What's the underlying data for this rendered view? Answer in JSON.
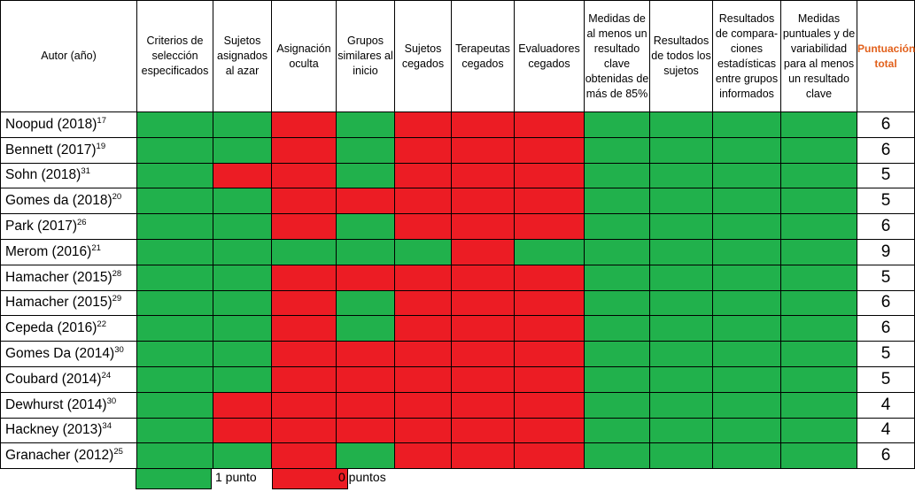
{
  "colors": {
    "green": "#21b14c",
    "red": "#ec1c24",
    "score_header": "#e2611c"
  },
  "headers": [
    "Autor (año)",
    "Criterios de selección especificados",
    "Sujetos asignados al azar",
    "Asignación oculta",
    "Grupos similares al inicio",
    "Sujetos cegados",
    "Terapeutas cegados",
    "Evaluadores cegados",
    "Medidas de al menos un resultado clave obtenidas de más de 85%",
    "Resultados de todos los sujetos",
    "Resultados de compara-ciones estadísticas entre grupos informados",
    "Medidas puntuales y de variabilidad para al menos un resultado clave",
    "Puntuación total"
  ],
  "rows": [
    {
      "author": "Noopud (2018)",
      "ref": "17",
      "cells": [
        "g",
        "g",
        "r",
        "g",
        "r",
        "r",
        "r",
        "g",
        "g",
        "g",
        "g"
      ],
      "score": "6"
    },
    {
      "author": "Bennett (2017)",
      "ref": "19",
      "cells": [
        "g",
        "g",
        "r",
        "g",
        "r",
        "r",
        "r",
        "g",
        "g",
        "g",
        "g"
      ],
      "score": "6"
    },
    {
      "author": "Sohn (2018)",
      "ref": "31",
      "cells": [
        "g",
        "r",
        "r",
        "g",
        "r",
        "r",
        "r",
        "g",
        "g",
        "g",
        "g"
      ],
      "score": "5"
    },
    {
      "author": "Gomes da (2018)",
      "ref": "20",
      "cells": [
        "g",
        "g",
        "r",
        "r",
        "r",
        "r",
        "r",
        "g",
        "g",
        "g",
        "g"
      ],
      "score": "5"
    },
    {
      "author": "Park (2017)",
      "ref": "26",
      "cells": [
        "g",
        "g",
        "r",
        "g",
        "r",
        "r",
        "r",
        "g",
        "g",
        "g",
        "g"
      ],
      "score": "6"
    },
    {
      "author": "Merom (2016)",
      "ref": "21",
      "cells": [
        "g",
        "g",
        "g",
        "g",
        "g",
        "r",
        "g",
        "g",
        "g",
        "g",
        "g"
      ],
      "score": "9"
    },
    {
      "author": "Hamacher (2015)",
      "ref": "28",
      "cells": [
        "g",
        "g",
        "r",
        "r",
        "r",
        "r",
        "r",
        "g",
        "g",
        "g",
        "g"
      ],
      "score": "5"
    },
    {
      "author": "Hamacher (2015)",
      "ref": "29",
      "cells": [
        "g",
        "g",
        "r",
        "g",
        "r",
        "r",
        "r",
        "g",
        "g",
        "g",
        "g"
      ],
      "score": "6"
    },
    {
      "author": "Cepeda (2016)",
      "ref": "22",
      "cells": [
        "g",
        "g",
        "r",
        "g",
        "r",
        "r",
        "r",
        "g",
        "g",
        "g",
        "g"
      ],
      "score": "6"
    },
    {
      "author": "Gomes Da (2014)",
      "ref": "30",
      "cells": [
        "g",
        "g",
        "r",
        "r",
        "r",
        "r",
        "r",
        "g",
        "g",
        "g",
        "g"
      ],
      "score": "5"
    },
    {
      "author": "Coubard (2014)",
      "ref": "24",
      "cells": [
        "g",
        "g",
        "r",
        "r",
        "r",
        "r",
        "r",
        "g",
        "g",
        "g",
        "g"
      ],
      "score": "5"
    },
    {
      "author": "Dewhurst (2014)",
      "ref": "30",
      "cells": [
        "g",
        "r",
        "r",
        "r",
        "r",
        "r",
        "r",
        "g",
        "g",
        "g",
        "g"
      ],
      "score": "4"
    },
    {
      "author": "Hackney (2013)",
      "ref": "34",
      "cells": [
        "g",
        "r",
        "r",
        "r",
        "r",
        "r",
        "r",
        "g",
        "g",
        "g",
        "g"
      ],
      "score": "4"
    },
    {
      "author": "Granacher (2012)",
      "ref": "25",
      "cells": [
        "g",
        "g",
        "r",
        "g",
        "r",
        "r",
        "r",
        "g",
        "g",
        "g",
        "g"
      ],
      "score": "6"
    }
  ],
  "legend": {
    "green_label": "1 punto",
    "red_label": "0 puntos"
  }
}
